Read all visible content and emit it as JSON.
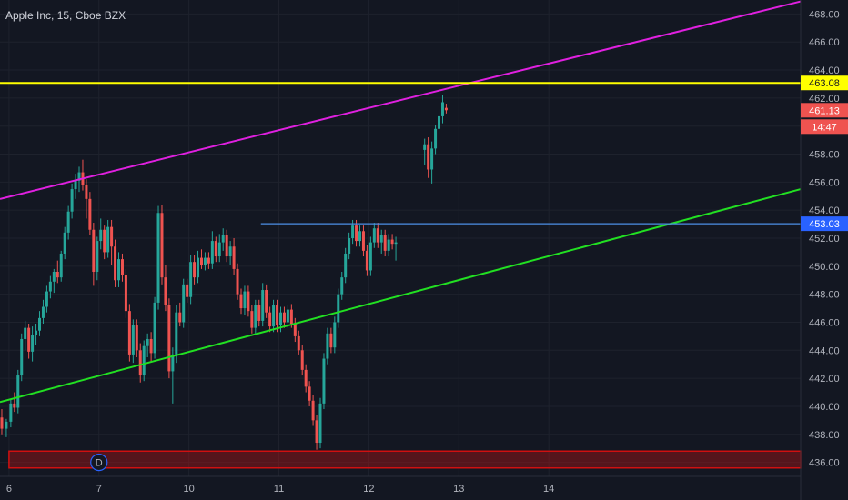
{
  "header": {
    "title": "Apple Inc, 15, Cboe BZX"
  },
  "colors": {
    "background": "#131722",
    "grid": "#1e222d",
    "up": "#26a69a",
    "down": "#ef5350",
    "magenta_line": "#e020e0",
    "green_line": "#22e022",
    "yellow_line": "#ffff00",
    "blue_line": "#4c8fe6",
    "zone": "#d01010"
  },
  "chart_data": {
    "type": "candlestick",
    "title": "Apple Inc, 15, Cboe BZX",
    "ylim": [
      435,
      469
    ],
    "xlim": [
      5.9,
      14.8
    ],
    "y_ticks": [
      "436.00",
      "438.00",
      "440.00",
      "442.00",
      "444.00",
      "446.00",
      "448.00",
      "450.00",
      "452.00",
      "454.00",
      "456.00",
      "458.00",
      "460.00",
      "462.00",
      "464.00",
      "466.00",
      "468.00"
    ],
    "x_ticks": [
      {
        "label": "6",
        "value": 6
      },
      {
        "label": "7",
        "value": 7
      },
      {
        "label": "10",
        "value": 8
      },
      {
        "label": "11",
        "value": 9
      },
      {
        "label": "12",
        "value": 10
      },
      {
        "label": "13",
        "value": 11
      },
      {
        "label": "14",
        "value": 12
      }
    ],
    "price_labels": {
      "yellow": {
        "text": "463.08",
        "value": 463.08
      },
      "last": {
        "text": "461.13",
        "value": 461.13
      },
      "countdown": {
        "text": "14:47"
      },
      "blue": {
        "text": "453.03",
        "value": 453.03
      }
    },
    "lines": {
      "magenta": {
        "x1": 5.9,
        "y1": 454.8,
        "x2": 14.8,
        "y2": 468.9
      },
      "green": {
        "x1": 5.9,
        "y1": 440.3,
        "x2": 14.8,
        "y2": 455.5
      },
      "yellow": {
        "y": 463.08
      },
      "blue": {
        "x1": 8.8,
        "x2": 14.8,
        "y": 453.03
      }
    },
    "zone": {
      "x1": 6.0,
      "x2": 14.8,
      "y_low": 435.6,
      "y_high": 436.8
    },
    "session_marker": {
      "text": "D",
      "x": 7.0,
      "y": 436.0
    },
    "candles": [
      [
        5.92,
        439.2,
        439.8,
        438.0,
        438.4
      ],
      [
        5.97,
        438.4,
        439.1,
        437.8,
        438.9
      ],
      [
        6.02,
        438.9,
        440.5,
        438.5,
        440.2
      ],
      [
        6.06,
        440.2,
        441.0,
        439.6,
        439.9
      ],
      [
        6.1,
        439.9,
        442.6,
        439.5,
        442.2
      ],
      [
        6.14,
        442.2,
        445.2,
        441.8,
        444.8
      ],
      [
        6.18,
        444.8,
        446.1,
        444.0,
        445.6
      ],
      [
        6.22,
        445.6,
        445.9,
        443.4,
        443.9
      ],
      [
        6.26,
        443.9,
        445.7,
        443.2,
        445.1
      ],
      [
        6.3,
        445.1,
        445.9,
        444.4,
        445.4
      ],
      [
        6.34,
        445.4,
        446.8,
        445.0,
        446.3
      ],
      [
        6.38,
        446.3,
        447.6,
        445.9,
        447.1
      ],
      [
        6.42,
        447.1,
        448.6,
        446.7,
        448.2
      ],
      [
        6.46,
        448.2,
        449.3,
        447.7,
        448.9
      ],
      [
        6.5,
        448.9,
        449.8,
        448.1,
        449.6
      ],
      [
        6.54,
        449.6,
        450.4,
        448.8,
        449.2
      ],
      [
        6.58,
        449.2,
        451.1,
        448.9,
        450.9
      ],
      [
        6.62,
        450.9,
        452.8,
        450.5,
        452.4
      ],
      [
        6.66,
        452.4,
        454.3,
        451.9,
        453.9
      ],
      [
        6.7,
        453.9,
        455.9,
        453.4,
        455.5
      ],
      [
        6.74,
        455.5,
        456.6,
        454.8,
        456.1
      ],
      [
        6.78,
        456.1,
        457.1,
        455.3,
        456.7
      ],
      [
        6.82,
        456.7,
        457.6,
        455.4,
        455.8
      ],
      [
        6.86,
        455.8,
        456.2,
        453.4,
        454.8
      ],
      [
        6.9,
        454.8,
        455.3,
        452.2,
        452.6
      ],
      [
        6.94,
        452.6,
        453.1,
        448.6,
        449.6
      ],
      [
        6.98,
        449.6,
        452.1,
        449.0,
        451.8
      ],
      [
        7.02,
        451.8,
        453.4,
        451.2,
        452.6
      ],
      [
        7.06,
        452.6,
        452.9,
        450.5,
        451.0
      ],
      [
        7.1,
        451.0,
        453.3,
        450.6,
        452.8
      ],
      [
        7.14,
        452.8,
        453.3,
        450.1,
        451.4
      ],
      [
        7.18,
        451.4,
        451.9,
        448.5,
        449.0
      ],
      [
        7.22,
        449.0,
        451.0,
        448.5,
        450.5
      ],
      [
        7.26,
        450.5,
        450.9,
        448.9,
        449.4
      ],
      [
        7.3,
        449.4,
        449.8,
        446.3,
        446.8
      ],
      [
        7.34,
        446.8,
        447.3,
        443.2,
        443.7
      ],
      [
        7.38,
        443.7,
        446.2,
        443.1,
        445.8
      ],
      [
        7.42,
        445.8,
        446.2,
        443.5,
        444.0
      ],
      [
        7.46,
        444.0,
        444.5,
        441.7,
        442.2
      ],
      [
        7.5,
        442.2,
        444.7,
        441.8,
        444.3
      ],
      [
        7.54,
        444.3,
        445.2,
        443.5,
        444.8
      ],
      [
        7.58,
        444.8,
        445.3,
        443.2,
        443.8
      ],
      [
        7.62,
        443.8,
        447.8,
        443.4,
        447.4
      ],
      [
        7.66,
        447.4,
        454.3,
        446.9,
        453.8
      ],
      [
        7.7,
        453.8,
        454.4,
        448.7,
        449.2
      ],
      [
        7.74,
        449.2,
        450.1,
        446.8,
        447.2
      ],
      [
        7.78,
        447.2,
        447.7,
        442.0,
        442.5
      ],
      [
        7.82,
        442.5,
        444.2,
        440.2,
        443.7
      ],
      [
        7.86,
        443.7,
        447.2,
        443.1,
        446.7
      ],
      [
        7.9,
        446.7,
        447.4,
        445.7,
        446.0
      ],
      [
        7.94,
        446.0,
        449.1,
        445.6,
        448.7
      ],
      [
        7.98,
        448.7,
        449.1,
        447.4,
        447.8
      ],
      [
        8.02,
        447.8,
        450.8,
        447.3,
        450.3
      ],
      [
        8.06,
        450.3,
        450.8,
        448.7,
        449.2
      ],
      [
        8.1,
        449.2,
        451.1,
        448.8,
        450.6
      ],
      [
        8.14,
        450.6,
        451.2,
        449.8,
        450.1
      ],
      [
        8.18,
        450.1,
        451.0,
        449.7,
        450.6
      ],
      [
        8.22,
        450.6,
        451.0,
        449.8,
        450.2
      ],
      [
        8.26,
        450.2,
        452.5,
        449.8,
        451.8
      ],
      [
        8.3,
        451.8,
        452.1,
        450.3,
        450.7
      ],
      [
        8.34,
        450.7,
        452.3,
        450.3,
        451.7
      ],
      [
        8.38,
        451.7,
        452.7,
        451.1,
        452.2
      ],
      [
        8.42,
        452.2,
        452.6,
        450.3,
        450.7
      ],
      [
        8.46,
        450.7,
        451.8,
        450.1,
        451.4
      ],
      [
        8.5,
        451.4,
        452.0,
        449.4,
        449.8
      ],
      [
        8.54,
        449.8,
        450.2,
        447.6,
        448.0
      ],
      [
        8.58,
        448.0,
        448.4,
        446.6,
        447.0
      ],
      [
        8.62,
        447.0,
        448.6,
        446.5,
        448.2
      ],
      [
        8.66,
        448.2,
        448.6,
        446.4,
        446.8
      ],
      [
        8.7,
        446.8,
        447.2,
        445.2,
        445.6
      ],
      [
        8.74,
        445.6,
        447.6,
        445.2,
        447.2
      ],
      [
        8.78,
        447.2,
        447.6,
        445.7,
        446.1
      ],
      [
        8.82,
        446.1,
        448.8,
        445.7,
        448.3
      ],
      [
        8.86,
        448.3,
        448.7,
        446.3,
        446.7
      ],
      [
        8.9,
        446.7,
        447.1,
        445.3,
        445.7
      ],
      [
        8.94,
        445.7,
        447.6,
        445.3,
        447.2
      ],
      [
        8.98,
        447.2,
        447.6,
        445.3,
        445.8
      ],
      [
        9.02,
        445.8,
        447.1,
        445.3,
        446.7
      ],
      [
        9.06,
        446.7,
        447.1,
        445.6,
        446.0
      ],
      [
        9.1,
        446.0,
        447.2,
        445.6,
        446.9
      ],
      [
        9.14,
        446.9,
        447.3,
        445.6,
        445.9
      ],
      [
        9.18,
        445.9,
        446.3,
        444.6,
        445.0
      ],
      [
        9.22,
        445.0,
        445.4,
        443.7,
        444.0
      ],
      [
        9.26,
        444.0,
        444.4,
        442.2,
        442.6
      ],
      [
        9.3,
        442.6,
        443.0,
        441.0,
        441.4
      ],
      [
        9.34,
        441.4,
        441.8,
        440.0,
        440.4
      ],
      [
        9.38,
        440.4,
        440.8,
        438.6,
        439.0
      ],
      [
        9.42,
        439.0,
        439.4,
        436.9,
        437.4
      ],
      [
        9.46,
        437.4,
        440.6,
        437.0,
        440.2
      ],
      [
        9.5,
        440.2,
        443.8,
        439.8,
        443.4
      ],
      [
        9.54,
        443.4,
        445.6,
        443.0,
        445.2
      ],
      [
        9.58,
        445.2,
        445.6,
        443.8,
        444.2
      ],
      [
        9.62,
        444.2,
        446.4,
        443.8,
        446.0
      ],
      [
        9.66,
        446.0,
        448.4,
        445.6,
        448.0
      ],
      [
        9.7,
        448.0,
        449.6,
        447.6,
        449.2
      ],
      [
        9.74,
        449.2,
        451.3,
        448.8,
        450.9
      ],
      [
        9.78,
        450.9,
        452.4,
        450.5,
        452.0
      ],
      [
        9.82,
        452.0,
        453.3,
        451.6,
        452.9
      ],
      [
        9.86,
        452.9,
        453.3,
        451.4,
        451.8
      ],
      [
        9.9,
        451.8,
        452.9,
        451.4,
        452.5
      ],
      [
        9.94,
        452.5,
        452.9,
        450.7,
        451.1
      ],
      [
        9.98,
        451.1,
        451.5,
        449.3,
        449.7
      ],
      [
        10.02,
        449.7,
        452.1,
        449.3,
        451.7
      ],
      [
        10.06,
        451.7,
        453.1,
        451.3,
        452.7
      ],
      [
        10.1,
        452.7,
        453.1,
        451.3,
        451.7
      ],
      [
        10.14,
        451.7,
        452.6,
        450.9,
        452.2
      ],
      [
        10.18,
        452.2,
        452.6,
        450.7,
        451.1
      ],
      [
        10.22,
        451.1,
        452.3,
        450.7,
        451.9
      ],
      [
        10.26,
        451.9,
        452.3,
        451.2,
        451.6
      ],
      [
        10.3,
        451.6,
        452.1,
        450.4,
        451.7
      ],
      [
        10.62,
        458.3,
        459.1,
        457.2,
        458.7
      ],
      [
        10.66,
        458.7,
        459.2,
        456.3,
        456.9
      ],
      [
        10.7,
        456.9,
        458.9,
        455.9,
        458.4
      ],
      [
        10.74,
        458.4,
        460.1,
        458.0,
        459.8
      ],
      [
        10.78,
        459.8,
        461.2,
        459.4,
        460.7
      ],
      [
        10.82,
        460.7,
        462.2,
        460.2,
        461.7
      ],
      [
        10.86,
        461.3,
        461.6,
        460.9,
        461.13
      ]
    ]
  }
}
